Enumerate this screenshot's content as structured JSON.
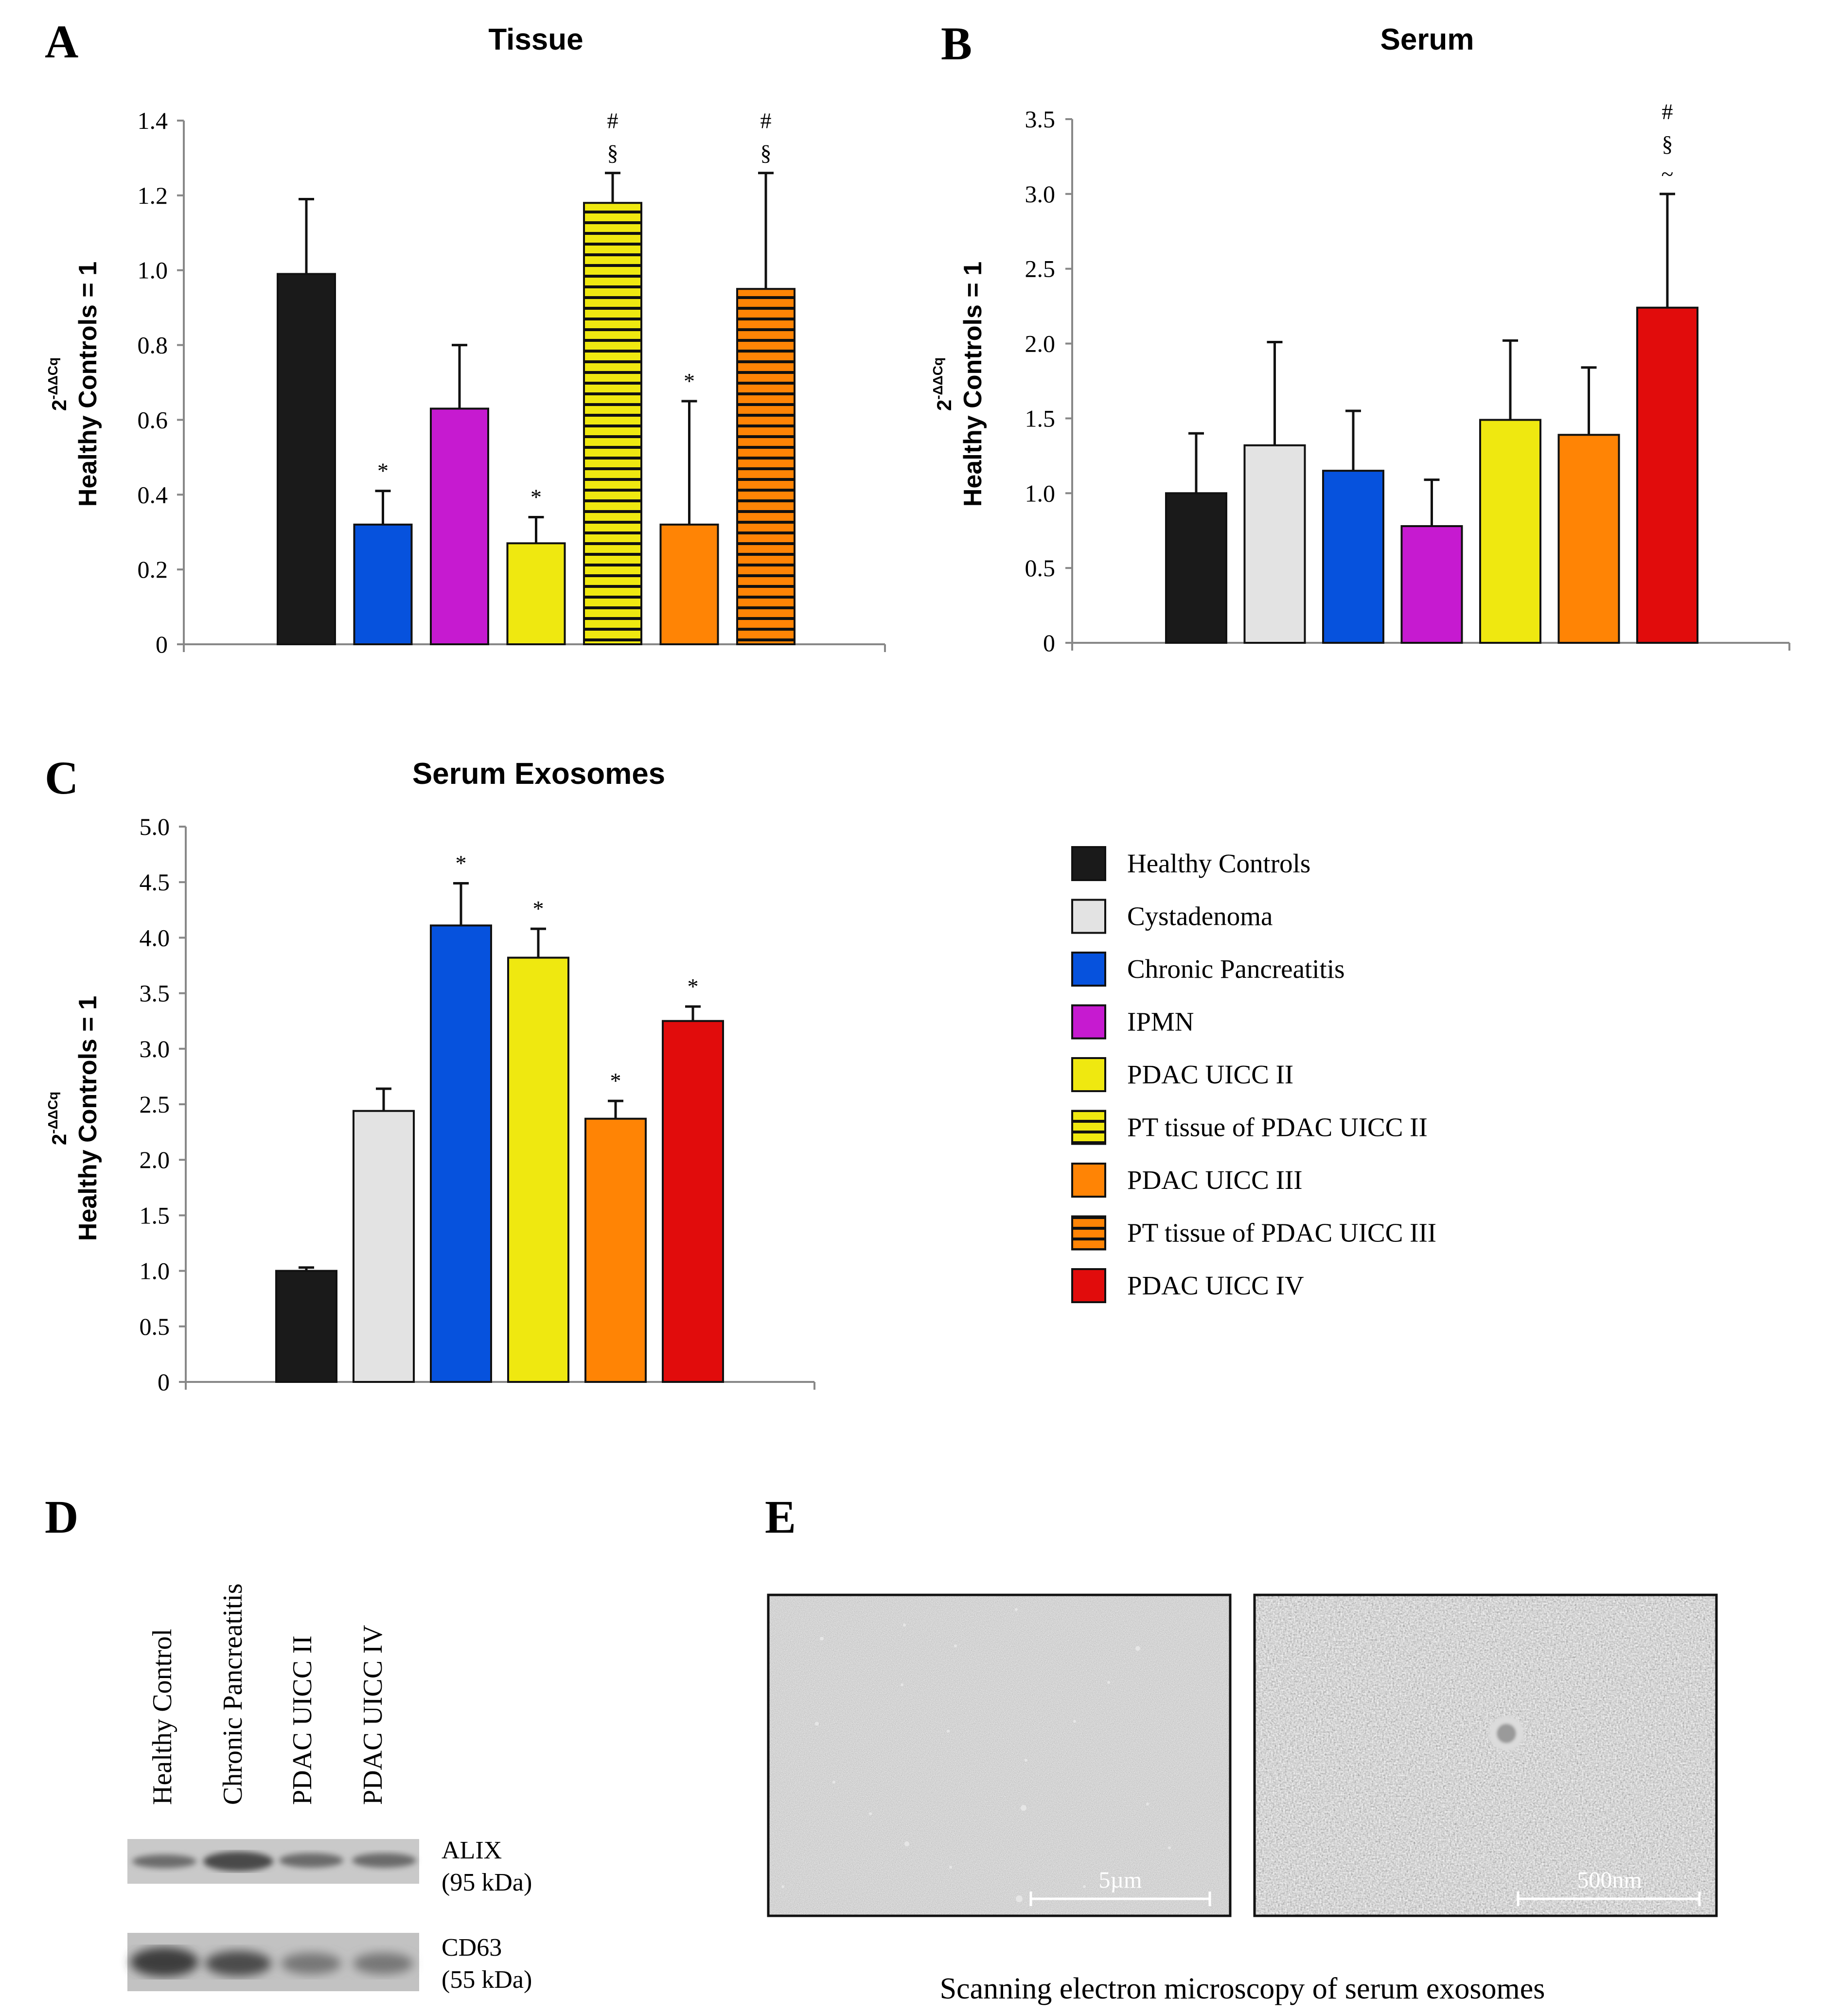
{
  "panels": {
    "A": {
      "letter": "A"
    },
    "B": {
      "letter": "B"
    },
    "C": {
      "letter": "C"
    },
    "D": {
      "letter": "D"
    },
    "E": {
      "letter": "E"
    }
  },
  "groups": [
    {
      "key": "hc",
      "name": "Healthy Controls",
      "color": "#1a1a1a",
      "hatch": false
    },
    {
      "key": "cyst",
      "name": "Cystadenoma",
      "color": "#e3e3e3",
      "hatch": false
    },
    {
      "key": "cp",
      "name": "Chronic Pancreatitis",
      "color": "#0652dd",
      "hatch": false
    },
    {
      "key": "ipmn",
      "name": "IPMN",
      "color": "#c61ad0",
      "hatch": false
    },
    {
      "key": "p2",
      "name": "PDAC UICC II",
      "color": "#efe810",
      "hatch": false
    },
    {
      "key": "pt2",
      "name": "PT tissue of PDAC UICC II",
      "color": "#efe810",
      "hatch": true
    },
    {
      "key": "p3",
      "name": "PDAC UICC III",
      "color": "#ff8405",
      "hatch": false
    },
    {
      "key": "pt3",
      "name": "PT tissue of PDAC UICC III",
      "color": "#ff8405",
      "hatch": true
    },
    {
      "key": "p4",
      "name": "PDAC UICC IV",
      "color": "#e10c0c",
      "hatch": false
    }
  ],
  "y_axis_label": {
    "superscript_base": "2",
    "superscript_exp": "-ΔΔCq",
    "line2": "Healthy Controls = 1"
  },
  "chart_data": [
    {
      "id": "A",
      "type": "bar",
      "title": "Tissue",
      "ylim": [
        0,
        1.4
      ],
      "yticks": [
        "0",
        "0.2",
        "0.4",
        "0.6",
        "0.8",
        "1.0",
        "1.2",
        "1.4"
      ],
      "tick_values": [
        0,
        0.2,
        0.4,
        0.6,
        0.8,
        1.0,
        1.2,
        1.4
      ],
      "bars": [
        {
          "group": "hc",
          "value": 0.99,
          "error": 0.2,
          "sig": []
        },
        {
          "group": "cp",
          "value": 0.32,
          "error": 0.09,
          "sig": [
            "*"
          ]
        },
        {
          "group": "ipmn",
          "value": 0.63,
          "error": 0.17,
          "sig": []
        },
        {
          "group": "p2",
          "value": 0.27,
          "error": 0.07,
          "sig": [
            "*"
          ]
        },
        {
          "group": "pt2",
          "value": 1.18,
          "error": 0.08,
          "sig": [
            "§",
            "#"
          ]
        },
        {
          "group": "p3",
          "value": 0.32,
          "error": 0.33,
          "sig": [
            "*"
          ]
        },
        {
          "group": "pt3",
          "value": 0.95,
          "error": 0.31,
          "sig": [
            "§",
            "#"
          ]
        }
      ]
    },
    {
      "id": "B",
      "type": "bar",
      "title": "Serum",
      "ylim": [
        0,
        3.5
      ],
      "yticks": [
        "0",
        "0.5",
        "1.0",
        "1.5",
        "2.0",
        "2.5",
        "3.0",
        "3.5"
      ],
      "tick_values": [
        0,
        0.5,
        1.0,
        1.5,
        2.0,
        2.5,
        3.0,
        3.5
      ],
      "bars": [
        {
          "group": "hc",
          "value": 1.0,
          "error": 0.4,
          "sig": []
        },
        {
          "group": "cyst",
          "value": 1.32,
          "error": 0.69,
          "sig": []
        },
        {
          "group": "cp",
          "value": 1.15,
          "error": 0.4,
          "sig": []
        },
        {
          "group": "ipmn",
          "value": 0.78,
          "error": 0.31,
          "sig": []
        },
        {
          "group": "p2",
          "value": 1.49,
          "error": 0.53,
          "sig": []
        },
        {
          "group": "p3",
          "value": 1.39,
          "error": 0.45,
          "sig": []
        },
        {
          "group": "p4",
          "value": 2.24,
          "error": 0.76,
          "sig": [
            "~",
            "§",
            "#"
          ]
        }
      ]
    },
    {
      "id": "C",
      "type": "bar",
      "title": "Serum Exosomes",
      "ylim": [
        0,
        5.0
      ],
      "yticks": [
        "0",
        "0.5",
        "1.0",
        "1.5",
        "2.0",
        "2.5",
        "3.0",
        "3.5",
        "4.0",
        "4.5",
        "5.0"
      ],
      "tick_values": [
        0,
        0.5,
        1.0,
        1.5,
        2.0,
        2.5,
        3.0,
        3.5,
        4.0,
        4.5,
        5.0
      ],
      "bars": [
        {
          "group": "hc",
          "value": 1.0,
          "error": 0.03,
          "sig": []
        },
        {
          "group": "cyst",
          "value": 2.44,
          "error": 0.2,
          "sig": []
        },
        {
          "group": "cp",
          "value": 4.11,
          "error": 0.38,
          "sig": [
            "*"
          ]
        },
        {
          "group": "p2",
          "value": 3.82,
          "error": 0.26,
          "sig": [
            "*"
          ]
        },
        {
          "group": "p3",
          "value": 2.37,
          "error": 0.16,
          "sig": [
            "*"
          ]
        },
        {
          "group": "p4",
          "value": 3.25,
          "error": 0.13,
          "sig": [
            "*"
          ]
        }
      ]
    }
  ],
  "western_blot": {
    "lanes": [
      "Healthy Control",
      "Chronic Pancreatitis",
      "PDAC UICC II",
      "PDAC UICC IV"
    ],
    "bands": [
      {
        "name": "ALIX",
        "size": "(95 kDa)"
      },
      {
        "name": "CD63",
        "size": "(55 kDa)"
      }
    ]
  },
  "sem": {
    "scale_left": "5µm",
    "scale_right": "500nm",
    "caption": "Scanning electron microscopy of serum exosomes"
  }
}
